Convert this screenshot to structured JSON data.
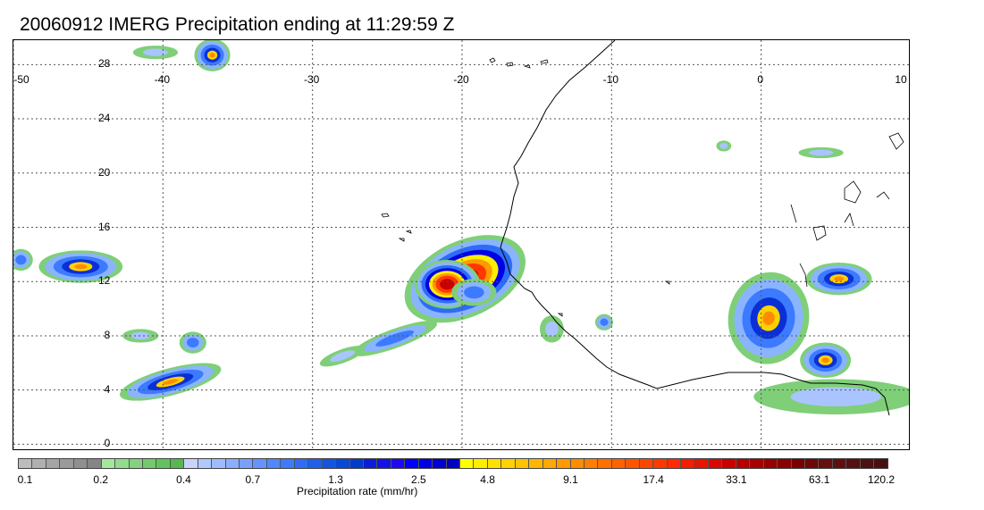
{
  "title": "20060912 IMERG Precipitation ending at 11:29:59 Z",
  "map": {
    "lon_ticks": [
      "-50",
      "-40",
      "-30",
      "-20",
      "-10",
      "0",
      "10"
    ],
    "lat_ticks": [
      "28",
      "24",
      "20",
      "16",
      "12",
      "8",
      "4",
      "0"
    ],
    "lon_range": [
      -50,
      10
    ],
    "lat_range": [
      -0.5,
      29.8
    ],
    "gridlines": true,
    "gridline_style": "dotted",
    "coastline_color": "#000000",
    "rain_areas": [
      {
        "lon": -19.8,
        "lat": 12.2,
        "rx": 4.3,
        "ry": 2.8,
        "level": "extreme",
        "rot": -25
      },
      {
        "lon": -21.0,
        "lat": 11.8,
        "rx": 2.2,
        "ry": 1.8,
        "level": "extreme",
        "rot": 0
      },
      {
        "lon": -24.5,
        "lat": 7.8,
        "rx": 3.0,
        "ry": 0.7,
        "level": "moderate",
        "rot": -20
      },
      {
        "lon": -28.0,
        "lat": 6.5,
        "rx": 1.6,
        "ry": 0.5,
        "level": "light",
        "rot": -20
      },
      {
        "lon": -45.5,
        "lat": 13.1,
        "rx": 2.8,
        "ry": 1.2,
        "level": "heavy",
        "rot": 0
      },
      {
        "lon": -49.5,
        "lat": 13.6,
        "rx": 0.8,
        "ry": 0.8,
        "level": "moderate",
        "rot": 0
      },
      {
        "lon": -39.5,
        "lat": 4.6,
        "rx": 3.5,
        "ry": 1.0,
        "level": "heavy",
        "rot": -15
      },
      {
        "lon": -38.0,
        "lat": 7.5,
        "rx": 0.9,
        "ry": 0.8,
        "level": "moderate",
        "rot": 0
      },
      {
        "lon": -36.7,
        "lat": 28.7,
        "rx": 1.2,
        "ry": 1.2,
        "level": "heavy",
        "rot": 0
      },
      {
        "lon": -40.5,
        "lat": 28.9,
        "rx": 1.5,
        "ry": 0.5,
        "level": "light",
        "rot": 0
      },
      {
        "lon": 0.5,
        "lat": 9.3,
        "rx": 2.7,
        "ry": 3.4,
        "level": "heavy",
        "rot": 10
      },
      {
        "lon": 5.2,
        "lat": 12.2,
        "rx": 2.2,
        "ry": 1.2,
        "level": "heavy",
        "rot": 0
      },
      {
        "lon": 4.3,
        "lat": 6.2,
        "rx": 1.7,
        "ry": 1.3,
        "level": "heavy",
        "rot": 0
      },
      {
        "lon": 5.0,
        "lat": 3.5,
        "rx": 5.5,
        "ry": 1.3,
        "level": "light",
        "rot": 0
      },
      {
        "lon": -19.2,
        "lat": 11.2,
        "rx": 1.5,
        "ry": 1.0,
        "level": "moderate",
        "rot": 0
      },
      {
        "lon": -14.0,
        "lat": 8.5,
        "rx": 0.8,
        "ry": 1.0,
        "level": "light",
        "rot": 0
      },
      {
        "lon": -10.5,
        "lat": 9.0,
        "rx": 0.6,
        "ry": 0.6,
        "level": "moderate",
        "rot": 0
      },
      {
        "lon": -2.5,
        "lat": 22.0,
        "rx": 0.5,
        "ry": 0.4,
        "level": "light",
        "rot": 0
      },
      {
        "lon": 4.0,
        "lat": 21.5,
        "rx": 1.5,
        "ry": 0.4,
        "level": "light",
        "rot": 0
      },
      {
        "lon": -41.5,
        "lat": 8.0,
        "rx": 1.2,
        "ry": 0.5,
        "level": "light",
        "rot": 0
      }
    ]
  },
  "colorbar": {
    "title": "Precipitation rate (mm/hr)",
    "colors": [
      "#bcbcbc",
      "#b0b0b0",
      "#a5a5a5",
      "#9a9a9a",
      "#8f8f8f",
      "#858585",
      "#a5e6a0",
      "#93dc8d",
      "#83d37c",
      "#73ca6d",
      "#64c25e",
      "#55b950",
      "#c6d4ff",
      "#b3c7ff",
      "#9fbbff",
      "#8baeff",
      "#78a1ff",
      "#6494ff",
      "#5087ff",
      "#3c7aff",
      "#2d6df5",
      "#1f60eb",
      "#1454e0",
      "#0a48d6",
      "#003ccc",
      "#0a1ed7",
      "#1414e6",
      "#1e0af0",
      "#0000ff",
      "#0000e6",
      "#0000d2",
      "#0000c0",
      "#ffff00",
      "#ffee00",
      "#ffe000",
      "#ffd200",
      "#ffc400",
      "#ffb600",
      "#ffa800",
      "#ff9a00",
      "#ff8c00",
      "#ff7e00",
      "#ff7000",
      "#ff6200",
      "#ff5400",
      "#ff4600",
      "#ff3800",
      "#ff2a00",
      "#f41e00",
      "#e61400",
      "#d80a00",
      "#c80000",
      "#b80000",
      "#a80000",
      "#980000",
      "#880000",
      "#7a0000",
      "#6e0808",
      "#660f0f",
      "#5e1010",
      "#561010",
      "#4e1010",
      "#481010"
    ],
    "labels": [
      {
        "text": "0.1",
        "cell": 0
      },
      {
        "text": "0.2",
        "cell": 6
      },
      {
        "text": "0.4",
        "cell": 12
      },
      {
        "text": "0.7",
        "cell": 17
      },
      {
        "text": "1.3",
        "cell": 23
      },
      {
        "text": "2.5",
        "cell": 29
      },
      {
        "text": "4.8",
        "cell": 34
      },
      {
        "text": "9.1",
        "cell": 40
      },
      {
        "text": "17.4",
        "cell": 46
      },
      {
        "text": "33.1",
        "cell": 52
      },
      {
        "text": "63.1",
        "cell": 58
      },
      {
        "text": "120.2",
        "cell": 64
      }
    ]
  }
}
